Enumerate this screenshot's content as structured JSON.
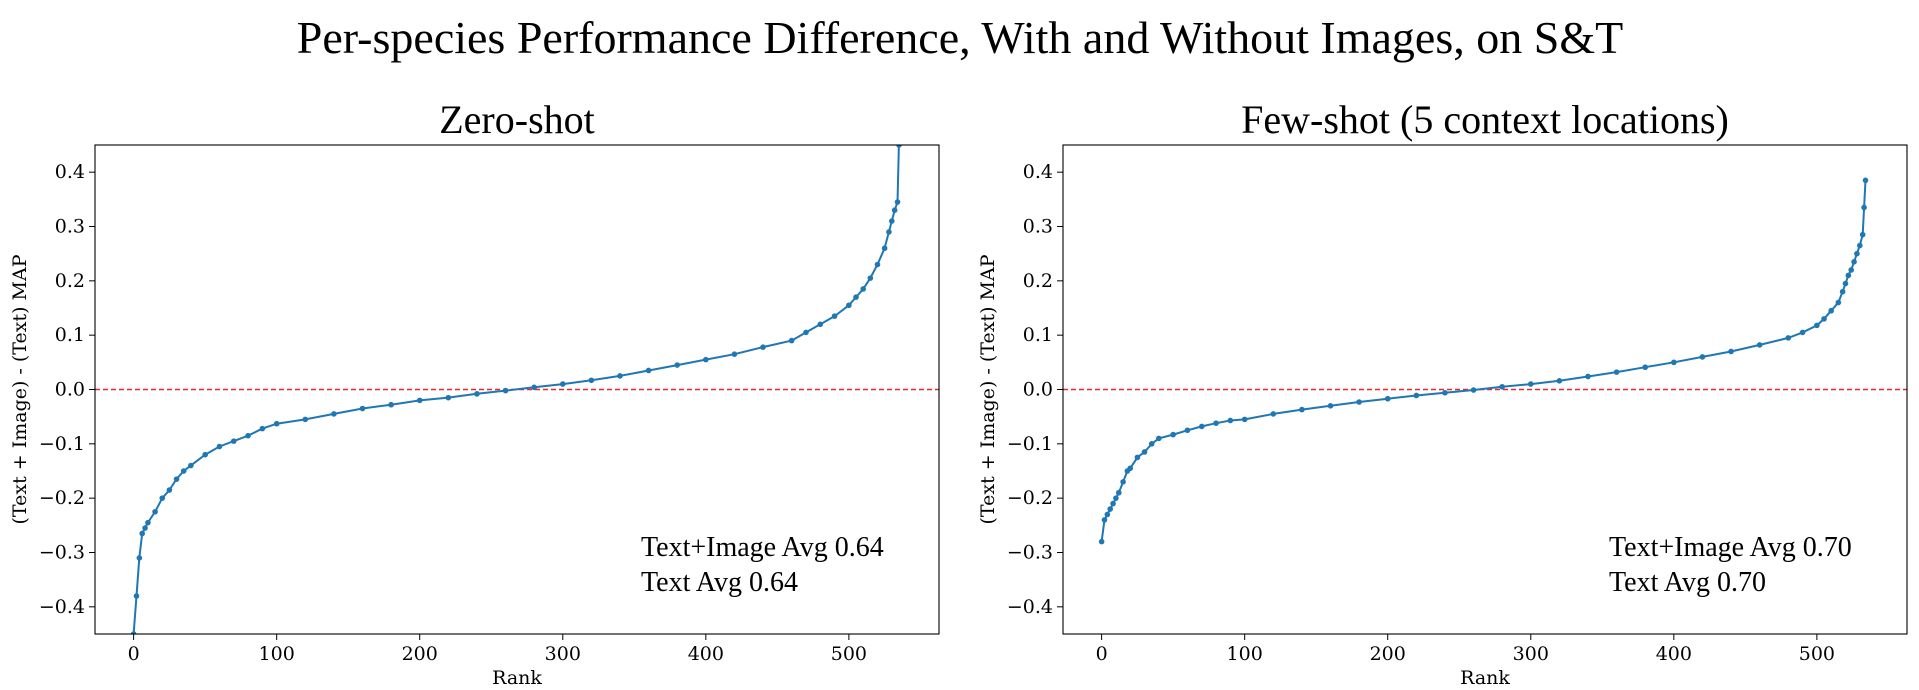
{
  "figure": {
    "suptitle": "Per-species Performance Difference, With and Without Images, on S&T"
  },
  "colors": {
    "series": "#1f77b4",
    "reference_line": "#e8262b",
    "axes": "#000000"
  },
  "chart_data": [
    {
      "type": "line",
      "title": "Zero-shot",
      "xlabel": "Rank",
      "ylabel": "(Text + Image) - (Text) MAP",
      "xlim": [
        -27,
        563
      ],
      "ylim": [
        -0.45,
        0.45
      ],
      "xticks": [
        0,
        100,
        200,
        300,
        400,
        500
      ],
      "xtick_labels": [
        "0",
        "100",
        "200",
        "300",
        "400",
        "500"
      ],
      "yticks": [
        -0.4,
        -0.3,
        -0.2,
        -0.1,
        0.0,
        0.1,
        0.2,
        0.3,
        0.4
      ],
      "ytick_labels": [
        "−0.4",
        "−0.3",
        "−0.2",
        "−0.1",
        "0.0",
        "0.1",
        "0.2",
        "0.3",
        "0.4"
      ],
      "reference_line_y": 0.0,
      "grid": false,
      "annotations": [
        "Text+Image Avg 0.64",
        "Text Avg 0.64"
      ],
      "series": [
        {
          "x": [
            0,
            2,
            4,
            6,
            8,
            10,
            15,
            20,
            25,
            30,
            35,
            40,
            50,
            60,
            70,
            80,
            90,
            100,
            120,
            140,
            160,
            180,
            200,
            220,
            240,
            260,
            280,
            300,
            320,
            340,
            360,
            380,
            400,
            420,
            440,
            460,
            470,
            480,
            490,
            500,
            505,
            510,
            515,
            520,
            525,
            528,
            530,
            532,
            534,
            535
          ],
          "y": [
            -0.45,
            -0.38,
            -0.31,
            -0.265,
            -0.255,
            -0.245,
            -0.225,
            -0.2,
            -0.185,
            -0.165,
            -0.15,
            -0.14,
            -0.12,
            -0.105,
            -0.095,
            -0.085,
            -0.072,
            -0.063,
            -0.055,
            -0.045,
            -0.035,
            -0.028,
            -0.02,
            -0.015,
            -0.008,
            -0.002,
            0.004,
            0.01,
            0.017,
            0.025,
            0.035,
            0.045,
            0.055,
            0.065,
            0.078,
            0.09,
            0.105,
            0.12,
            0.135,
            0.155,
            0.17,
            0.185,
            0.205,
            0.23,
            0.26,
            0.29,
            0.31,
            0.33,
            0.345,
            0.45
          ]
        }
      ]
    },
    {
      "type": "line",
      "title": "Few-shot (5 context locations)",
      "xlabel": "Rank",
      "ylabel": "(Text + Image) - (Text) MAP",
      "xlim": [
        -27,
        563
      ],
      "ylim": [
        -0.45,
        0.45
      ],
      "xticks": [
        0,
        100,
        200,
        300,
        400,
        500
      ],
      "xtick_labels": [
        "0",
        "100",
        "200",
        "300",
        "400",
        "500"
      ],
      "yticks": [
        -0.4,
        -0.3,
        -0.2,
        -0.1,
        0.0,
        0.1,
        0.2,
        0.3,
        0.4
      ],
      "ytick_labels": [
        "−0.4",
        "−0.3",
        "−0.2",
        "−0.1",
        "0.0",
        "0.1",
        "0.2",
        "0.3",
        "0.4"
      ],
      "reference_line_y": 0.0,
      "grid": false,
      "annotations": [
        "Text+Image Avg 0.70",
        "Text Avg 0.70"
      ],
      "series": [
        {
          "x": [
            0,
            2,
            4,
            6,
            8,
            10,
            12,
            15,
            18,
            20,
            25,
            30,
            35,
            40,
            50,
            60,
            70,
            80,
            90,
            100,
            120,
            140,
            160,
            180,
            200,
            220,
            240,
            260,
            280,
            300,
            320,
            340,
            360,
            380,
            400,
            420,
            440,
            460,
            480,
            490,
            500,
            505,
            510,
            515,
            518,
            520,
            522,
            524,
            526,
            528,
            530,
            532,
            533,
            534
          ],
          "y": [
            -0.28,
            -0.24,
            -0.23,
            -0.22,
            -0.21,
            -0.2,
            -0.19,
            -0.17,
            -0.15,
            -0.145,
            -0.125,
            -0.115,
            -0.1,
            -0.09,
            -0.083,
            -0.075,
            -0.068,
            -0.062,
            -0.057,
            -0.055,
            -0.045,
            -0.037,
            -0.03,
            -0.023,
            -0.017,
            -0.011,
            -0.006,
            -0.001,
            0.005,
            0.01,
            0.016,
            0.024,
            0.032,
            0.041,
            0.05,
            0.06,
            0.07,
            0.082,
            0.095,
            0.105,
            0.118,
            0.13,
            0.145,
            0.16,
            0.18,
            0.195,
            0.21,
            0.22,
            0.235,
            0.25,
            0.265,
            0.285,
            0.335,
            0.385
          ]
        }
      ]
    }
  ]
}
